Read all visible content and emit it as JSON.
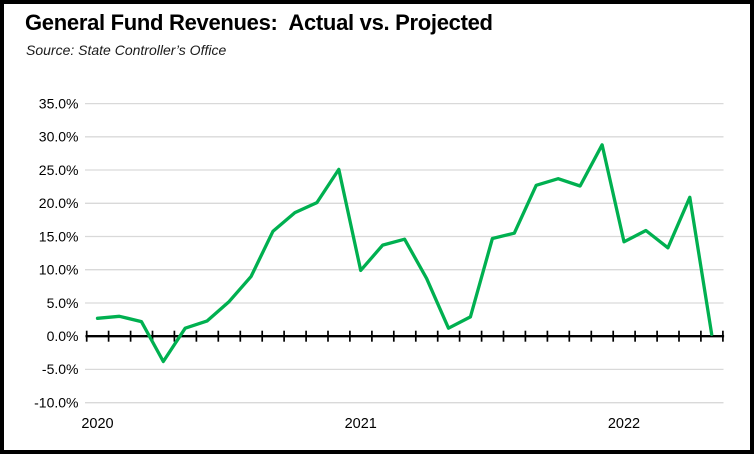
{
  "window": {
    "title": "General Fund Revenues:  Actual vs. Projected",
    "subtitle": "Source: State Controller’s Office"
  },
  "chart_data": {
    "type": "line",
    "title": "General Fund Revenues:  Actual vs. Projected",
    "subtitle": "Source: State Controller’s Office",
    "unit": "percent",
    "grid": true,
    "legend": "none",
    "ylim": [
      -10,
      35
    ],
    "ytick_values": [
      35,
      30,
      25,
      20,
      15,
      10,
      5,
      0,
      -5,
      -10
    ],
    "ytick_labels": [
      "35.0%",
      "30.0%",
      "25.0%",
      "20.0%",
      "15.0%",
      "10.0%",
      "5.0%",
      "0.0%",
      "-5.0%",
      "-10.0%"
    ],
    "x": [
      "Jan-20",
      "Feb-20",
      "Mar-20",
      "Apr-20",
      "May-20",
      "Jun-20",
      "Jul-20",
      "Aug-20",
      "Sep-20",
      "Oct-20",
      "Nov-20",
      "Dec-20",
      "Jan-21",
      "Feb-21",
      "Mar-21",
      "Apr-21",
      "May-21",
      "Jun-21",
      "Jul-21",
      "Aug-21",
      "Sep-21",
      "Oct-21",
      "Nov-21",
      "Dec-21",
      "Jan-22",
      "Feb-22",
      "Mar-22",
      "Apr-22",
      "May-22"
    ],
    "values": [
      2.7,
      3.0,
      2.2,
      -3.8,
      1.2,
      2.3,
      5.2,
      9.0,
      15.8,
      18.6,
      20.1,
      25.1,
      9.9,
      13.7,
      14.6,
      8.7,
      1.2,
      2.9,
      14.7,
      15.5,
      22.7,
      23.7,
      22.6,
      28.8,
      14.2,
      15.9,
      13.3,
      20.9,
      0.3
    ],
    "year_labels": [
      {
        "label": "2020",
        "month_index": 0
      },
      {
        "label": "2021",
        "month_index": 12
      },
      {
        "label": "2022",
        "month_index": 24
      }
    ],
    "colors": {
      "line": "#00B050",
      "gridline": "#D9D9D9",
      "axis": "#000000",
      "text": "#000000",
      "background": "#FFFFFF",
      "border": "#000000"
    }
  }
}
